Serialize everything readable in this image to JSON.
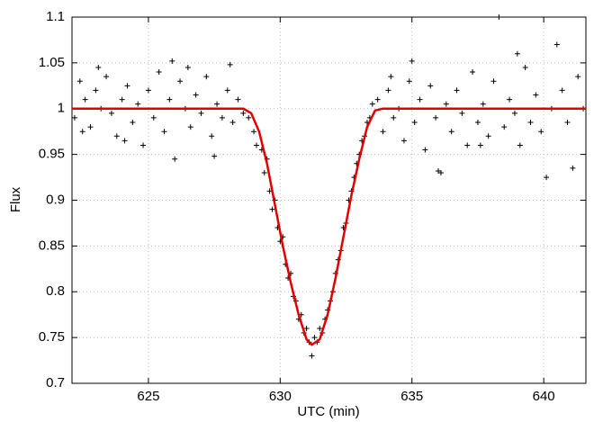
{
  "chart_data": {
    "type": "scatter",
    "xlabel": "UTC (min)",
    "ylabel": "Flux",
    "xlim": [
      622.1,
      641.6
    ],
    "ylim": [
      0.7,
      1.1
    ],
    "xticks": [
      625,
      630,
      635,
      640
    ],
    "yticks": [
      0.7,
      0.75,
      0.8,
      0.85,
      0.9,
      0.95,
      1,
      1.05,
      1.1
    ],
    "grid": true,
    "series": [
      {
        "type": "scatter",
        "color": "#000000",
        "x": [
          622.2,
          622.4,
          622.6,
          622.8,
          623.0,
          623.2,
          623.4,
          623.6,
          623.8,
          624.0,
          624.2,
          624.4,
          624.6,
          624.8,
          625.0,
          625.2,
          625.4,
          625.6,
          625.8,
          626.0,
          626.2,
          626.4,
          626.6,
          626.8,
          627.0,
          627.2,
          627.4,
          627.6,
          627.8,
          628.0,
          628.2,
          628.4,
          628.6,
          625.9,
          624.1,
          622.5,
          623.1,
          626.5,
          627.5,
          628.1,
          628.8,
          629.0,
          629.1,
          629.3,
          629.4,
          629.5,
          629.6,
          629.7,
          629.8,
          629.9,
          630.0,
          630.1,
          630.2,
          630.3,
          630.4,
          630.5,
          630.6,
          630.7,
          630.8,
          630.9,
          631.0,
          631.1,
          631.2,
          631.3,
          631.4,
          631.5,
          631.6,
          631.7,
          631.8,
          631.9,
          632.0,
          632.1,
          632.2,
          632.3,
          632.4,
          632.5,
          632.6,
          632.7,
          632.8,
          632.9,
          633.0,
          633.1,
          633.2,
          633.3,
          633.4,
          633.5,
          633.7,
          633.9,
          634.1,
          634.3,
          634.5,
          634.7,
          634.9,
          635.1,
          635.3,
          635.5,
          635.7,
          635.9,
          636.1,
          636.3,
          636.5,
          636.7,
          636.9,
          637.1,
          637.3,
          637.5,
          637.7,
          637.9,
          638.1,
          638.3,
          638.5,
          638.7,
          638.9,
          639.1,
          639.3,
          639.5,
          639.7,
          639.9,
          640.1,
          640.3,
          640.5,
          640.7,
          640.9,
          641.1,
          641.3,
          641.5,
          635.0,
          636.0,
          634.2,
          637.6,
          639.0
        ],
        "values": [
          0.99,
          1.03,
          1.01,
          0.98,
          1.02,
          1.0,
          1.035,
          0.995,
          0.97,
          1.01,
          1.025,
          0.985,
          1.005,
          0.96,
          1.02,
          0.99,
          1.04,
          0.975,
          1.01,
          0.945,
          1.03,
          1.0,
          0.98,
          1.015,
          0.995,
          1.035,
          0.97,
          1.005,
          0.99,
          1.02,
          0.985,
          1.01,
          0.995,
          1.052,
          0.965,
          0.975,
          1.045,
          1.045,
          0.948,
          1.048,
          0.99,
          0.975,
          0.96,
          0.955,
          0.93,
          0.945,
          0.91,
          0.89,
          0.9,
          0.87,
          0.855,
          0.86,
          0.83,
          0.815,
          0.82,
          0.795,
          0.79,
          0.77,
          0.775,
          0.755,
          0.76,
          0.745,
          0.73,
          0.75,
          0.745,
          0.76,
          0.755,
          0.77,
          0.78,
          0.79,
          0.8,
          0.82,
          0.835,
          0.845,
          0.87,
          0.875,
          0.9,
          0.91,
          0.925,
          0.94,
          0.95,
          0.965,
          0.97,
          0.985,
          0.99,
          1.005,
          1.01,
          0.975,
          1.02,
          0.99,
          1.0,
          0.965,
          1.03,
          0.985,
          1.01,
          0.955,
          1.025,
          0.99,
          0.93,
          1.005,
          0.975,
          1.02,
          0.995,
          0.96,
          1.04,
          0.985,
          1.005,
          0.97,
          1.03,
          1.1,
          0.98,
          1.01,
          0.995,
          0.96,
          1.045,
          0.985,
          1.015,
          0.975,
          0.925,
          1.0,
          1.07,
          1.02,
          0.985,
          0.935,
          1.035,
          1.0,
          1.052,
          0.932,
          1.035,
          0.96,
          1.06
        ]
      },
      {
        "type": "line",
        "color": "#e00000",
        "x": [
          622.1,
          628.6,
          628.9,
          629.2,
          629.5,
          629.8,
          630.1,
          630.4,
          630.7,
          631.0,
          631.2,
          631.5,
          631.8,
          632.1,
          632.4,
          632.7,
          633.0,
          633.3,
          633.6,
          633.9,
          641.6
        ],
        "values": [
          1,
          1,
          0.995,
          0.975,
          0.94,
          0.895,
          0.85,
          0.81,
          0.775,
          0.748,
          0.742,
          0.748,
          0.775,
          0.815,
          0.86,
          0.905,
          0.945,
          0.98,
          0.998,
          1,
          1
        ]
      }
    ]
  }
}
